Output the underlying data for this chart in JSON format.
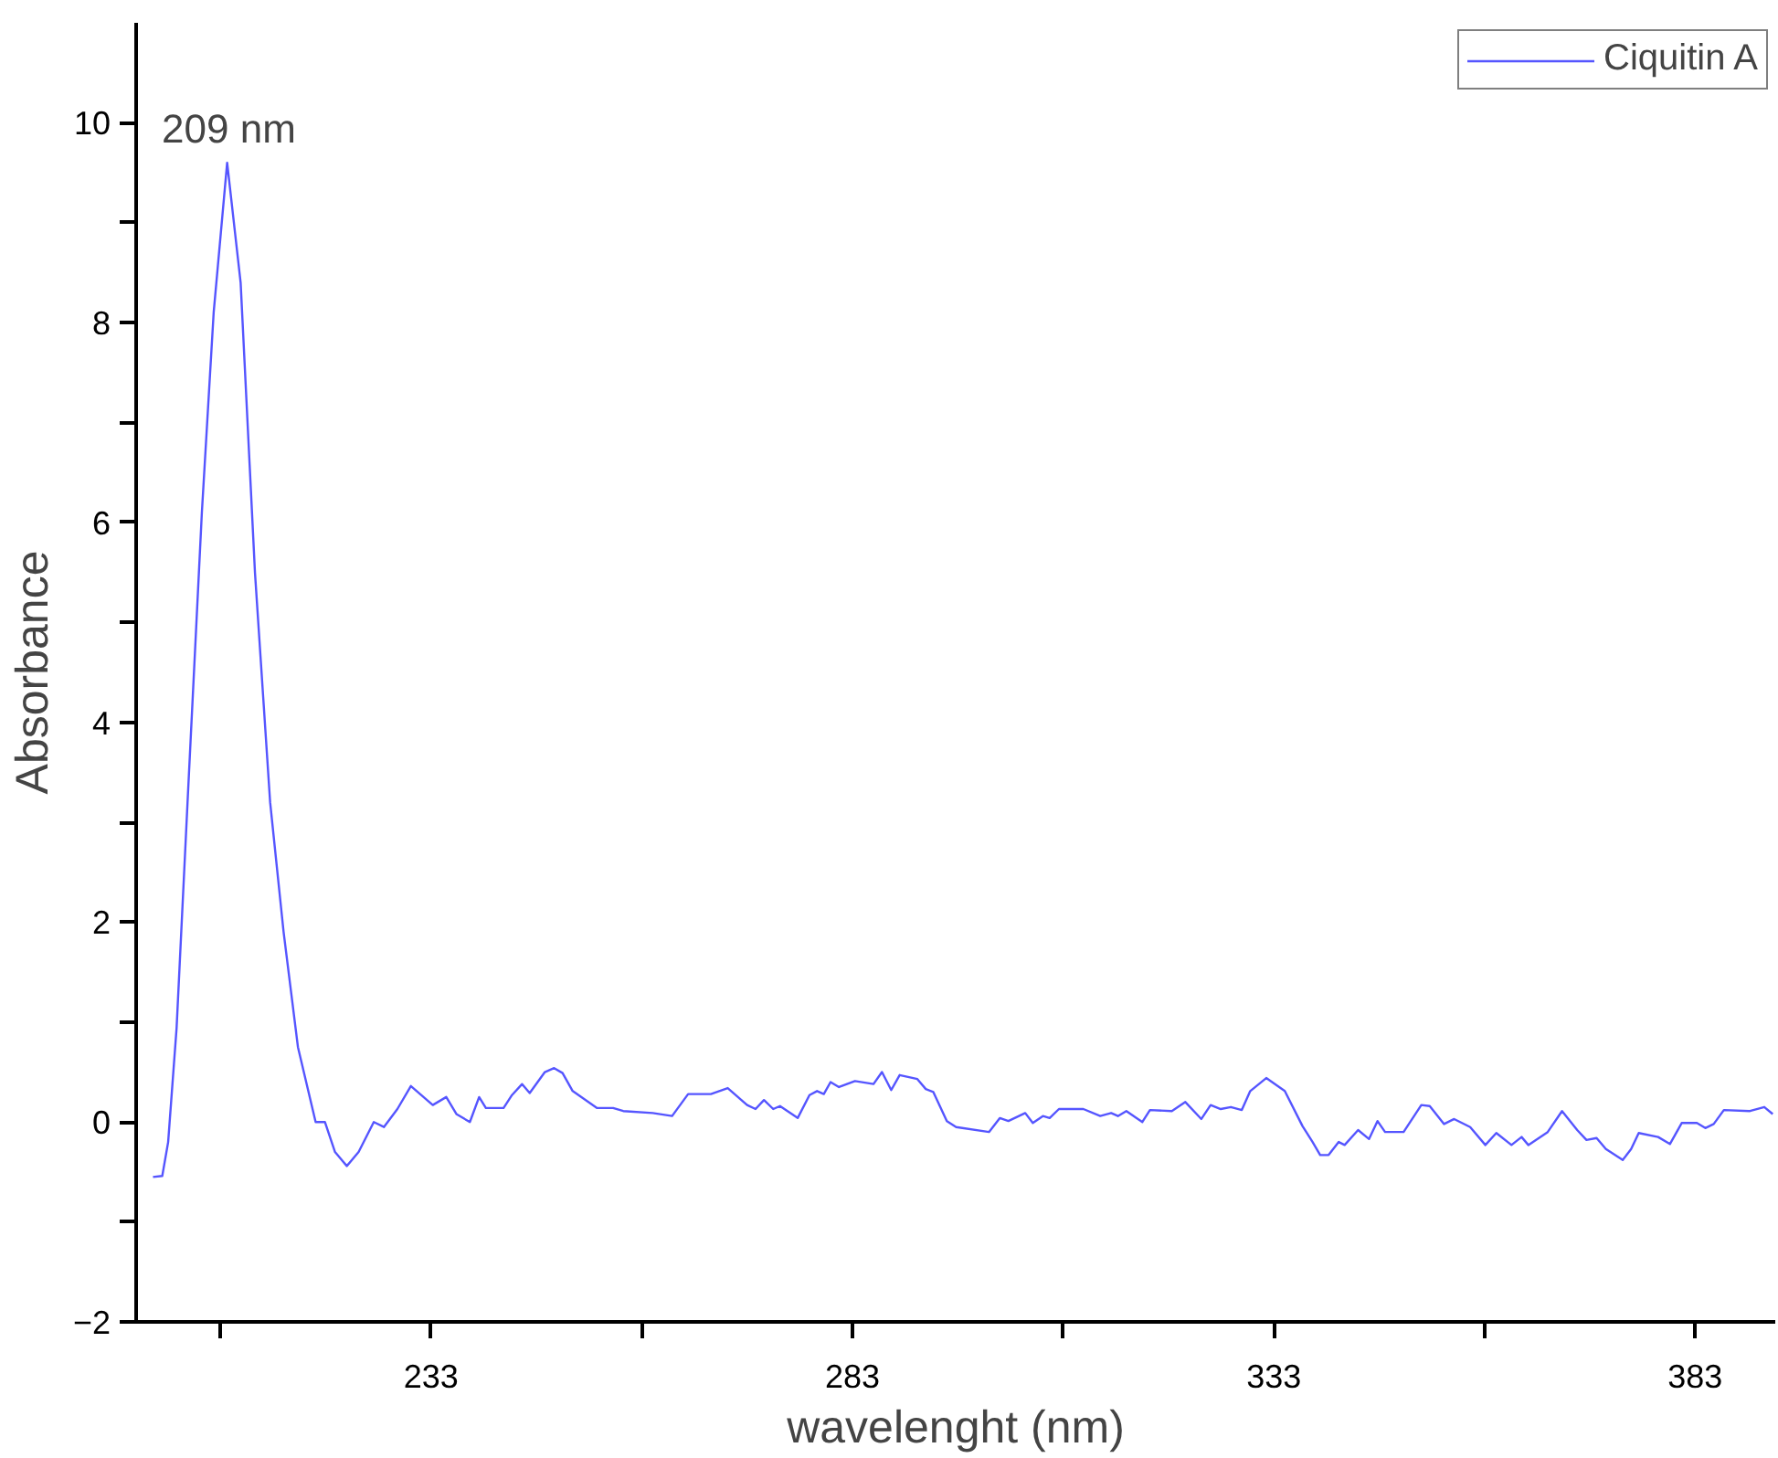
{
  "chart_data": {
    "type": "line",
    "xlabel": "wavelenght (nm)",
    "ylabel": "Absorbance",
    "xlim": [
      198,
      392.5
    ],
    "ylim": [
      -2,
      11
    ],
    "xticks": [
      {
        "value": 208,
        "label": null
      },
      233,
      {
        "value": 258,
        "label": null
      },
      283,
      {
        "value": 308,
        "label": null
      },
      333,
      {
        "value": 358,
        "label": null
      },
      383
    ],
    "yticks": [
      -2,
      {
        "value": -1,
        "label": null
      },
      0,
      {
        "value": 1,
        "label": null
      },
      2,
      {
        "value": 3,
        "label": null
      },
      4,
      {
        "value": 5,
        "label": null
      },
      6,
      {
        "value": 7,
        "label": null
      },
      8,
      {
        "value": 9,
        "label": null
      },
      10
    ],
    "grid": false,
    "legend": "top right",
    "marker": "none",
    "line_style": "solid",
    "annotations": [
      {
        "text": "209 nm",
        "x": 209,
        "y": 9.6
      }
    ],
    "series": [
      {
        "name": "Ciquitin A",
        "color": "#5555ff",
        "x": [
          200.0,
          201.1,
          201.8,
          202.8,
          204.1,
          205.8,
          207.2,
          208.8,
          210.4,
          212.1,
          213.9,
          215.5,
          217.2,
          219.3,
          220.4,
          221.6,
          223.0,
          224.4,
          226.2,
          227.4,
          229.0,
          230.6,
          233.2,
          234.8,
          236.0,
          237.6,
          238.7,
          239.5,
          241.6,
          242.6,
          243.8,
          244.7,
          246.5,
          247.6,
          248.6,
          249.8,
          252.7,
          254.6,
          255.8,
          259.3,
          261.6,
          263.5,
          266.2,
          268.2,
          270.5,
          271.5,
          272.5,
          273.6,
          274.4,
          276.5,
          277.9,
          278.8,
          279.6,
          280.4,
          281.4,
          283.3,
          285.5,
          286.5,
          287.6,
          288.6,
          290.7,
          291.7,
          292.6,
          294.2,
          295.3,
          299.2,
          300.5,
          301.5,
          303.5,
          304.4,
          305.6,
          306.4,
          307.5,
          310.4,
          312.4,
          313.7,
          314.5,
          315.5,
          317.4,
          318.3,
          320.9,
          322.5,
          324.4,
          325.5,
          326.7,
          327.9,
          329.2,
          330.2,
          332.1,
          334.3,
          336.4,
          337.6,
          338.5,
          339.5,
          340.7,
          341.4,
          343.0,
          344.3,
          345.3,
          346.2,
          348.4,
          350.5,
          351.5,
          353.2,
          354.4,
          356.3,
          358.1,
          359.4,
          361.2,
          362.4,
          363.2,
          365.5,
          367.2,
          369.0,
          370.1,
          371.3,
          372.4,
          374.4,
          375.4,
          376.3,
          378.6,
          380.0,
          381.4,
          383.2,
          384.2,
          385.2,
          386.4,
          389.5,
          391.2,
          392.2
        ],
        "values": [
          -0.55,
          -0.54,
          -0.2,
          0.94,
          3.2,
          6.1,
          8.1,
          9.6,
          8.4,
          5.5,
          3.2,
          1.9,
          0.75,
          0.0,
          0.0,
          -0.3,
          -0.44,
          -0.3,
          0.0,
          -0.05,
          0.13,
          0.36,
          0.17,
          0.25,
          0.08,
          0.0,
          0.25,
          0.14,
          0.14,
          0.27,
          0.38,
          0.29,
          0.5,
          0.54,
          0.49,
          0.31,
          0.14,
          0.14,
          0.11,
          0.09,
          0.06,
          0.28,
          0.28,
          0.34,
          0.17,
          0.13,
          0.22,
          0.13,
          0.16,
          0.04,
          0.27,
          0.31,
          0.28,
          0.4,
          0.35,
          0.41,
          0.38,
          0.5,
          0.32,
          0.47,
          0.43,
          0.33,
          0.3,
          0.01,
          -0.05,
          -0.1,
          0.04,
          0.01,
          0.09,
          -0.01,
          0.06,
          0.04,
          0.13,
          0.13,
          0.06,
          0.09,
          0.06,
          0.11,
          0.0,
          0.12,
          0.11,
          0.2,
          0.03,
          0.17,
          0.13,
          0.15,
          0.12,
          0.31,
          0.44,
          0.31,
          -0.04,
          -0.2,
          -0.33,
          -0.33,
          -0.2,
          -0.23,
          -0.08,
          -0.17,
          0.01,
          -0.1,
          -0.1,
          0.17,
          0.16,
          -0.02,
          0.03,
          -0.05,
          -0.23,
          -0.11,
          -0.23,
          -0.15,
          -0.23,
          -0.1,
          0.11,
          -0.08,
          -0.18,
          -0.16,
          -0.27,
          -0.38,
          -0.27,
          -0.11,
          -0.15,
          -0.22,
          -0.01,
          -0.01,
          -0.06,
          -0.02,
          0.12,
          0.11,
          0.15,
          0.08
        ]
      }
    ]
  }
}
